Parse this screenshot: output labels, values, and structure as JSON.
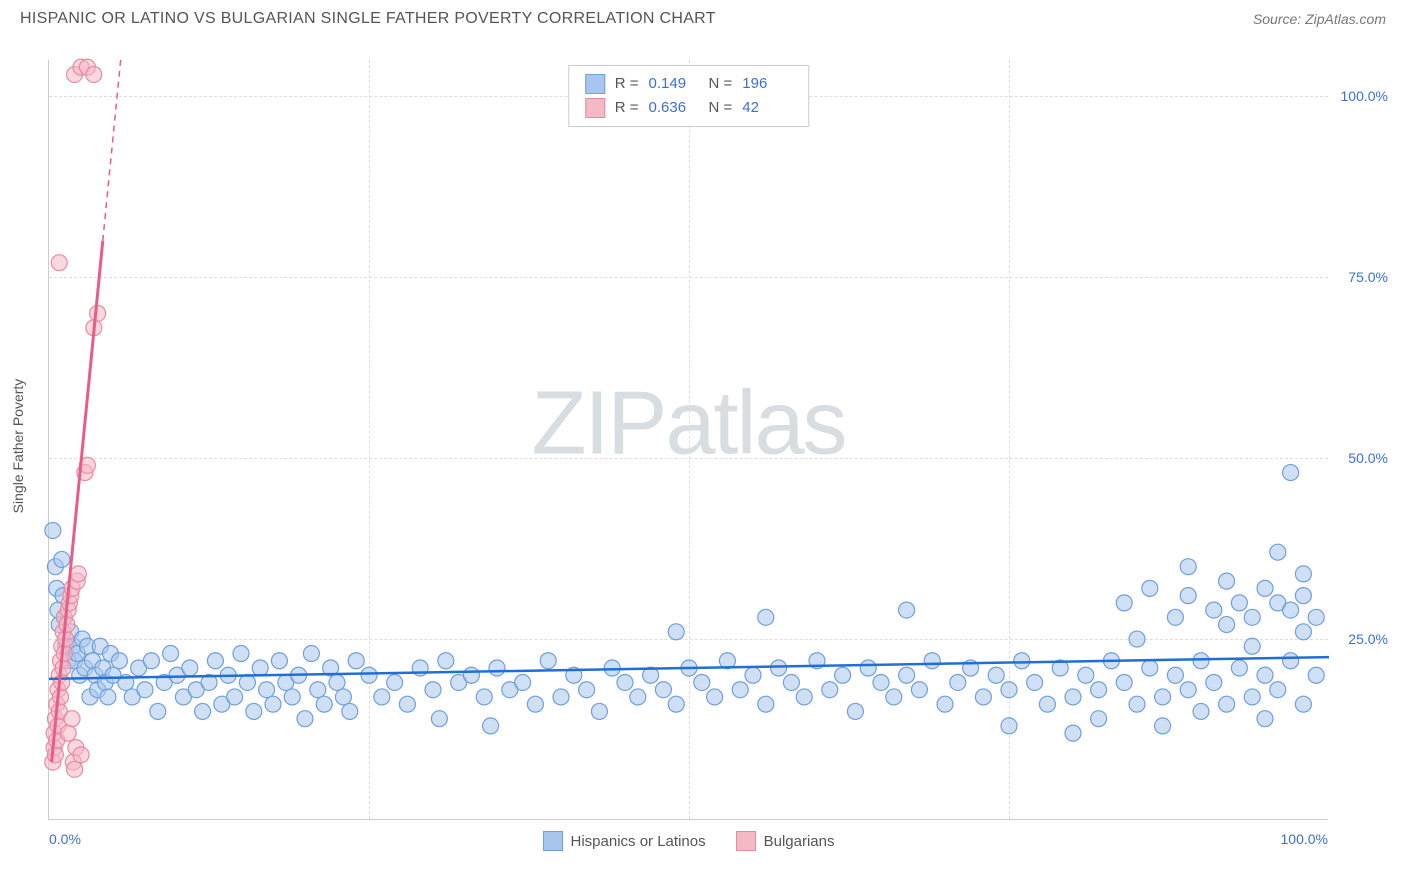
{
  "header": {
    "title": "HISPANIC OR LATINO VS BULGARIAN SINGLE FATHER POVERTY CORRELATION CHART",
    "source_prefix": "Source: ",
    "source": "ZipAtlas.com"
  },
  "watermark": {
    "zip": "ZIP",
    "atlas": "atlas"
  },
  "axes": {
    "y_label": "Single Father Poverty",
    "xlim": [
      0,
      100
    ],
    "ylim": [
      0,
      105
    ],
    "x_ticks": [
      0,
      25,
      50,
      75,
      100
    ],
    "y_ticks": [
      25,
      50,
      75,
      100
    ],
    "x_tick_labels": {
      "0": "0.0%",
      "100": "100.0%"
    },
    "y_tick_labels": {
      "25": "25.0%",
      "50": "50.0%",
      "75": "75.0%",
      "100": "100.0%"
    }
  },
  "series": {
    "blue": {
      "name": "Hispanics or Latinos",
      "label": "Hispanics or Latinos",
      "color_fill": "#a8c6ed",
      "color_stroke": "#6f9fdc",
      "color_line": "#1f6fd6",
      "marker_radius": 8,
      "fill_opacity": 0.55,
      "R": "0.149",
      "N": "196",
      "trend": {
        "x1": 0,
        "y1": 19.5,
        "x2": 100,
        "y2": 22.5
      },
      "points": [
        [
          0.3,
          40
        ],
        [
          0.5,
          35
        ],
        [
          0.6,
          32
        ],
        [
          0.7,
          29
        ],
        [
          0.8,
          27
        ],
        [
          1,
          36
        ],
        [
          1.1,
          31
        ],
        [
          1.2,
          28
        ],
        [
          1.3,
          24
        ],
        [
          1.5,
          22
        ],
        [
          1.7,
          26
        ],
        [
          1.9,
          24
        ],
        [
          2,
          22
        ],
        [
          2.2,
          23
        ],
        [
          2.4,
          20
        ],
        [
          2.6,
          25
        ],
        [
          2.8,
          21
        ],
        [
          3,
          24
        ],
        [
          3.2,
          17
        ],
        [
          3.4,
          22
        ],
        [
          3.6,
          20
        ],
        [
          3.8,
          18
        ],
        [
          4,
          24
        ],
        [
          4.2,
          21
        ],
        [
          4.4,
          19
        ],
        [
          4.6,
          17
        ],
        [
          4.8,
          23
        ],
        [
          5,
          20
        ],
        [
          5.5,
          22
        ],
        [
          6,
          19
        ],
        [
          6.5,
          17
        ],
        [
          7,
          21
        ],
        [
          7.5,
          18
        ],
        [
          8,
          22
        ],
        [
          8.5,
          15
        ],
        [
          9,
          19
        ],
        [
          9.5,
          23
        ],
        [
          10,
          20
        ],
        [
          10.5,
          17
        ],
        [
          11,
          21
        ],
        [
          11.5,
          18
        ],
        [
          12,
          15
        ],
        [
          12.5,
          19
        ],
        [
          13,
          22
        ],
        [
          13.5,
          16
        ],
        [
          14,
          20
        ],
        [
          14.5,
          17
        ],
        [
          15,
          23
        ],
        [
          15.5,
          19
        ],
        [
          16,
          15
        ],
        [
          16.5,
          21
        ],
        [
          17,
          18
        ],
        [
          17.5,
          16
        ],
        [
          18,
          22
        ],
        [
          18.5,
          19
        ],
        [
          19,
          17
        ],
        [
          19.5,
          20
        ],
        [
          20,
          14
        ],
        [
          20.5,
          23
        ],
        [
          21,
          18
        ],
        [
          21.5,
          16
        ],
        [
          22,
          21
        ],
        [
          22.5,
          19
        ],
        [
          23,
          17
        ],
        [
          23.5,
          15
        ],
        [
          24,
          22
        ],
        [
          25,
          20
        ],
        [
          26,
          17
        ],
        [
          27,
          19
        ],
        [
          28,
          16
        ],
        [
          29,
          21
        ],
        [
          30,
          18
        ],
        [
          30.5,
          14
        ],
        [
          31,
          22
        ],
        [
          32,
          19
        ],
        [
          33,
          20
        ],
        [
          34,
          17
        ],
        [
          34.5,
          13
        ],
        [
          35,
          21
        ],
        [
          36,
          18
        ],
        [
          37,
          19
        ],
        [
          38,
          16
        ],
        [
          39,
          22
        ],
        [
          40,
          17
        ],
        [
          41,
          20
        ],
        [
          42,
          18
        ],
        [
          43,
          15
        ],
        [
          44,
          21
        ],
        [
          45,
          19
        ],
        [
          46,
          17
        ],
        [
          47,
          20
        ],
        [
          48,
          18
        ],
        [
          49,
          16
        ],
        [
          49,
          26
        ],
        [
          50,
          21
        ],
        [
          51,
          19
        ],
        [
          52,
          17
        ],
        [
          53,
          22
        ],
        [
          54,
          18
        ],
        [
          55,
          20
        ],
        [
          56,
          16
        ],
        [
          56,
          28
        ],
        [
          57,
          21
        ],
        [
          58,
          19
        ],
        [
          59,
          17
        ],
        [
          60,
          22
        ],
        [
          61,
          18
        ],
        [
          62,
          20
        ],
        [
          63,
          15
        ],
        [
          64,
          21
        ],
        [
          65,
          19
        ],
        [
          66,
          17
        ],
        [
          67,
          20
        ],
        [
          67,
          29
        ],
        [
          68,
          18
        ],
        [
          69,
          22
        ],
        [
          70,
          16
        ],
        [
          71,
          19
        ],
        [
          72,
          21
        ],
        [
          73,
          17
        ],
        [
          74,
          20
        ],
        [
          75,
          18
        ],
        [
          75,
          13
        ],
        [
          76,
          22
        ],
        [
          77,
          19
        ],
        [
          78,
          16
        ],
        [
          79,
          21
        ],
        [
          80,
          17
        ],
        [
          80,
          12
        ],
        [
          81,
          20
        ],
        [
          82,
          18
        ],
        [
          82,
          14
        ],
        [
          83,
          22
        ],
        [
          84,
          19
        ],
        [
          84,
          30
        ],
        [
          85,
          16
        ],
        [
          85,
          25
        ],
        [
          86,
          21
        ],
        [
          86,
          32
        ],
        [
          87,
          17
        ],
        [
          87,
          13
        ],
        [
          88,
          20
        ],
        [
          88,
          28
        ],
        [
          89,
          18
        ],
        [
          89,
          31
        ],
        [
          89,
          35
        ],
        [
          90,
          22
        ],
        [
          90,
          15
        ],
        [
          91,
          19
        ],
        [
          91,
          29
        ],
        [
          92,
          16
        ],
        [
          92,
          27
        ],
        [
          92,
          33
        ],
        [
          93,
          21
        ],
        [
          93,
          30
        ],
        [
          94,
          17
        ],
        [
          94,
          28
        ],
        [
          94,
          24
        ],
        [
          95,
          20
        ],
        [
          95,
          32
        ],
        [
          95,
          14
        ],
        [
          96,
          18
        ],
        [
          96,
          30
        ],
        [
          96,
          37
        ],
        [
          97,
          22
        ],
        [
          97,
          29
        ],
        [
          97,
          48
        ],
        [
          98,
          16
        ],
        [
          98,
          31
        ],
        [
          98,
          26
        ],
        [
          98,
          34
        ],
        [
          99,
          20
        ],
        [
          99,
          28
        ]
      ]
    },
    "pink": {
      "name": "Bulgarians",
      "label": "Bulgarians",
      "color_fill": "#f5b8c5",
      "color_stroke": "#e88aa0",
      "color_line": "#e85d85",
      "marker_radius": 8,
      "fill_opacity": 0.55,
      "R": "0.636",
      "N": "42",
      "trend_solid": {
        "x1": 0.2,
        "y1": 8,
        "x2": 4.2,
        "y2": 80
      },
      "trend_dashed": {
        "x1": 4.2,
        "y1": 80,
        "x2": 5.6,
        "y2": 105
      },
      "points": [
        [
          0.3,
          8
        ],
        [
          0.4,
          10
        ],
        [
          0.4,
          12
        ],
        [
          0.5,
          14
        ],
        [
          0.5,
          9
        ],
        [
          0.6,
          11
        ],
        [
          0.6,
          16
        ],
        [
          0.7,
          13
        ],
        [
          0.7,
          18
        ],
        [
          0.8,
          15
        ],
        [
          0.8,
          20
        ],
        [
          0.9,
          17
        ],
        [
          0.9,
          22
        ],
        [
          1.0,
          19
        ],
        [
          1.0,
          24
        ],
        [
          1.1,
          21
        ],
        [
          1.1,
          26
        ],
        [
          1.2,
          23
        ],
        [
          1.2,
          28
        ],
        [
          1.3,
          25
        ],
        [
          1.4,
          27
        ],
        [
          1.5,
          29
        ],
        [
          1.6,
          30
        ],
        [
          1.7,
          31
        ],
        [
          1.8,
          32
        ],
        [
          1.9,
          8
        ],
        [
          2.0,
          7
        ],
        [
          2.1,
          10
        ],
        [
          2.2,
          33
        ],
        [
          2.3,
          34
        ],
        [
          2.5,
          9
        ],
        [
          0.8,
          77
        ],
        [
          2.8,
          48
        ],
        [
          3.0,
          49
        ],
        [
          3.5,
          68
        ],
        [
          3.8,
          70
        ],
        [
          2.0,
          103
        ],
        [
          2.5,
          104
        ],
        [
          3.0,
          104
        ],
        [
          3.5,
          103
        ],
        [
          1.5,
          12
        ],
        [
          1.8,
          14
        ]
      ]
    }
  },
  "legend_top": {
    "R_label": "R = ",
    "N_label": "N = "
  },
  "legend_bottom": {
    "blue": "Hispanics or Latinos",
    "pink": "Bulgarians"
  },
  "colors": {
    "grid": "#dddddd",
    "axis": "#cccccc",
    "text": "#555555",
    "tick_text": "#3b6fd6",
    "background": "#ffffff"
  }
}
